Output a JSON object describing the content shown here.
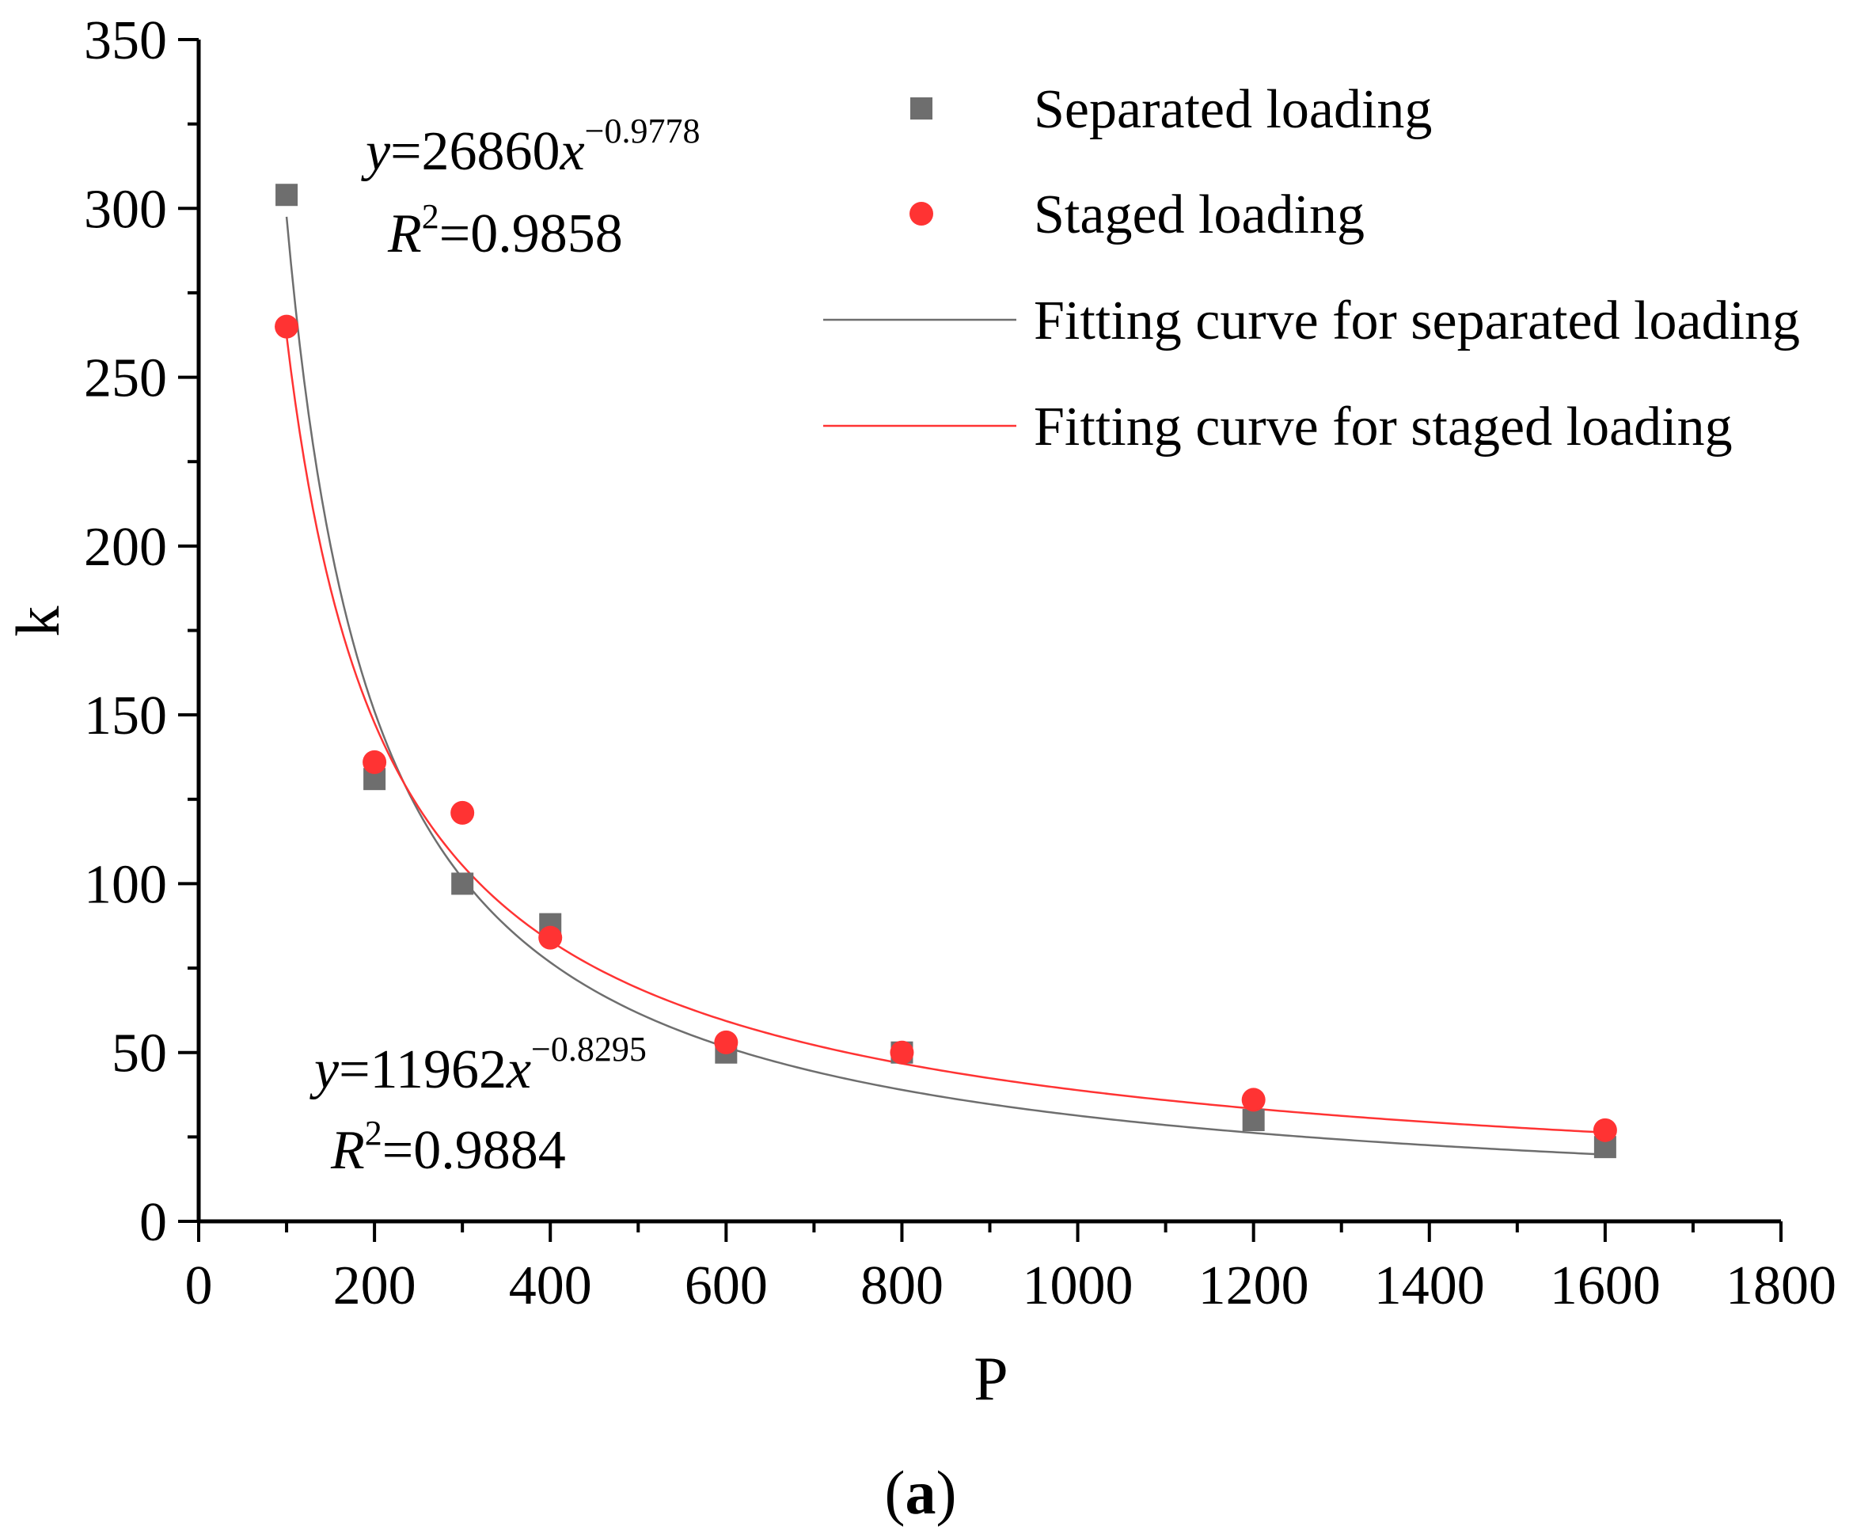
{
  "chart_data": {
    "type": "scatter",
    "title": "",
    "xlabel": "P",
    "ylabel": "k",
    "xlim": [
      0,
      1800
    ],
    "ylim": [
      0,
      350
    ],
    "x_ticks": [
      0,
      200,
      400,
      600,
      800,
      1000,
      1200,
      1400,
      1600,
      1800
    ],
    "x_tick_labels": [
      "0",
      "200",
      "400",
      "600",
      "800",
      "1000",
      "1200",
      "1400",
      "1600",
      "1800"
    ],
    "x_minor_step": 100,
    "y_ticks": [
      0,
      50,
      100,
      150,
      200,
      250,
      300,
      350
    ],
    "y_tick_labels": [
      "0",
      "50",
      "100",
      "150",
      "200",
      "250",
      "300",
      "350"
    ],
    "y_minor_step": 25,
    "grid": false,
    "legend_position": "top-right",
    "series": [
      {
        "name": "Separated loading",
        "kind": "points",
        "marker": "square",
        "color": "#6e6e6e",
        "x": [
          100,
          200,
          300,
          400,
          600,
          800,
          1200,
          1600
        ],
        "y": [
          304,
          131,
          100,
          88,
          50,
          50,
          30,
          22
        ]
      },
      {
        "name": "Staged loading",
        "kind": "points",
        "marker": "circle",
        "color": "#ff3333",
        "x": [
          100,
          200,
          300,
          400,
          600,
          800,
          1200,
          1600
        ],
        "y": [
          265,
          136,
          121,
          84,
          53,
          50,
          36,
          27
        ]
      },
      {
        "name": "Fitting curve for separated loading",
        "kind": "power_fit",
        "color": "#6e6e6e",
        "a": 26860,
        "b": -0.9778,
        "x_range": [
          100,
          1600
        ]
      },
      {
        "name": "Fitting curve for staged  loading",
        "kind": "power_fit",
        "color": "#ff3333",
        "a": 11962,
        "b": -0.8295,
        "x_range": [
          100,
          1600
        ]
      }
    ],
    "annotations": [
      {
        "id": "separated-equation",
        "var": "y",
        "eq": "=26860",
        "xvar": "x",
        "exponent": "−0.9778",
        "r2_var": "R",
        "r2_exp": "2",
        "r2_value": "=0.9858"
      },
      {
        "id": "staged-equation",
        "var": "y",
        "eq": "=11962",
        "xvar": "x",
        "exponent": "−0.8295",
        "r2_var": "R",
        "r2_exp": "2",
        "r2_value": "=0.9884"
      }
    ],
    "panel_label": {
      "open": "(",
      "letter": "a",
      "close": ")"
    }
  }
}
